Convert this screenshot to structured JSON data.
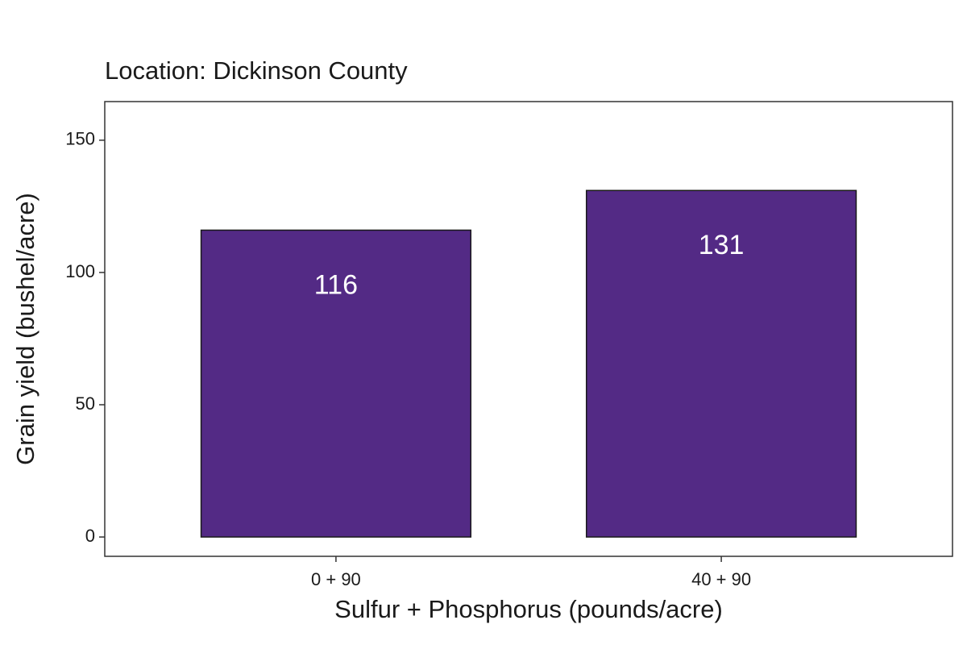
{
  "chart_data": {
    "type": "bar",
    "title": "Location: Dickinson County",
    "x_label": "Sulfur + Phosphorus (pounds/acre)",
    "y_label": "Grain yield (bushel/acre)",
    "categories": [
      "0 + 90",
      "40 + 90"
    ],
    "values": [
      116,
      131
    ],
    "color": "#532a85",
    "ylim": [
      -7.3,
      164.6
    ],
    "yticks": [
      0,
      50,
      100,
      150
    ],
    "grid": false,
    "data_labels": true
  }
}
